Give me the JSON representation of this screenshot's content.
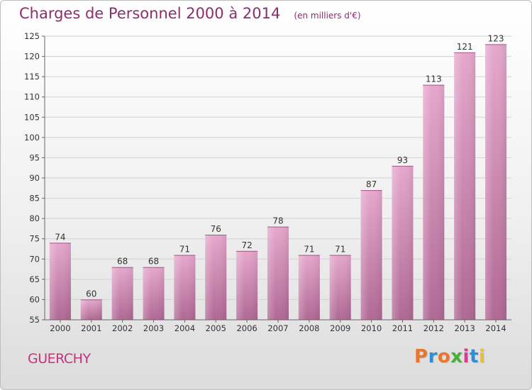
{
  "chart_data": {
    "type": "bar",
    "title": "Charges de Personnel 2000 à 2014",
    "subtitle": "(en milliers d'€)",
    "categories": [
      "2000",
      "2001",
      "2002",
      "2003",
      "2004",
      "2005",
      "2006",
      "2007",
      "2008",
      "2009",
      "2010",
      "2011",
      "2012",
      "2013",
      "2014"
    ],
    "values": [
      74,
      60,
      68,
      68,
      71,
      76,
      72,
      78,
      71,
      71,
      87,
      93,
      113,
      121,
      123
    ],
    "ylim": [
      55,
      125
    ],
    "yticks": [
      55,
      60,
      65,
      70,
      75,
      80,
      85,
      90,
      95,
      100,
      105,
      110,
      115,
      120,
      125
    ],
    "xlabel": "",
    "ylabel": "",
    "grid": true,
    "bar_color": "#c96fa6"
  },
  "footer": {
    "town": "GUERCHY",
    "logo_text": "Proxiti",
    "logo_colors": [
      "#e8762c",
      "#2e8fd6",
      "#e8762c",
      "#4aae3c",
      "#d63c8f",
      "#2e8fd6",
      "#e8c12c"
    ]
  }
}
